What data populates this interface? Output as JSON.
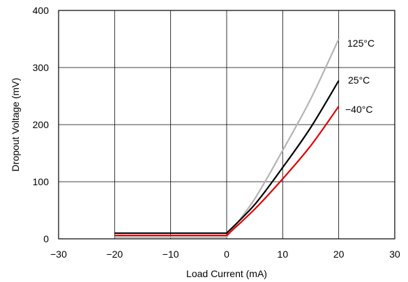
{
  "chart_data": {
    "type": "line",
    "title": "",
    "xlabel": "Load Current (mA)",
    "ylabel": "Dropout Voltage (mV)",
    "xlim": [
      -30,
      30
    ],
    "ylim": [
      0,
      400
    ],
    "xticks": [
      -30,
      -20,
      -10,
      0,
      10,
      20,
      30
    ],
    "xtick_labels": [
      "−30",
      "−20",
      "−10",
      "0",
      "10",
      "20",
      "30"
    ],
    "yticks": [
      0,
      100,
      200,
      300,
      400
    ],
    "ytick_labels": [
      "0",
      "100",
      "200",
      "300",
      "400"
    ],
    "grid": true,
    "legend": "inline labels at line ends",
    "series": [
      {
        "name": "125°C",
        "color": "#b4b4b4",
        "x": [
          -20,
          0,
          5,
          10,
          15,
          20
        ],
        "y": [
          3,
          3,
          70,
          155,
          245,
          350
        ]
      },
      {
        "name": "25°C",
        "color": "#000000",
        "x": [
          -20,
          0,
          5,
          10,
          15,
          20
        ],
        "y": [
          10,
          10,
          60,
          125,
          195,
          277
        ]
      },
      {
        "name": "−40°C",
        "color": "#e00000",
        "x": [
          -20,
          0,
          5,
          10,
          15,
          20
        ],
        "y": [
          6,
          6,
          52,
          105,
          163,
          232
        ]
      }
    ]
  }
}
